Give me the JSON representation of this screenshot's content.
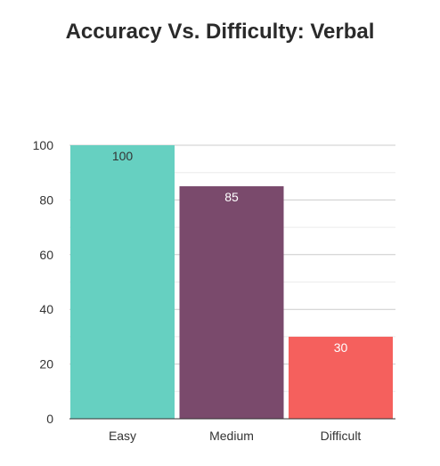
{
  "chart_data": {
    "type": "bar",
    "title": "Accuracy Vs. Difficulty: Verbal",
    "categories": [
      "Easy",
      "Medium",
      "Difficult"
    ],
    "values": [
      100,
      85,
      30
    ],
    "colors": [
      "#66d0c1",
      "#7a4a6c",
      "#f5605d"
    ],
    "value_label_colors": [
      "#333333",
      "#ffffff",
      "#ffffff"
    ],
    "ylim": [
      0,
      100
    ],
    "yticks": [
      0,
      20,
      40,
      60,
      80,
      100
    ],
    "grid": true,
    "legend": "none"
  }
}
